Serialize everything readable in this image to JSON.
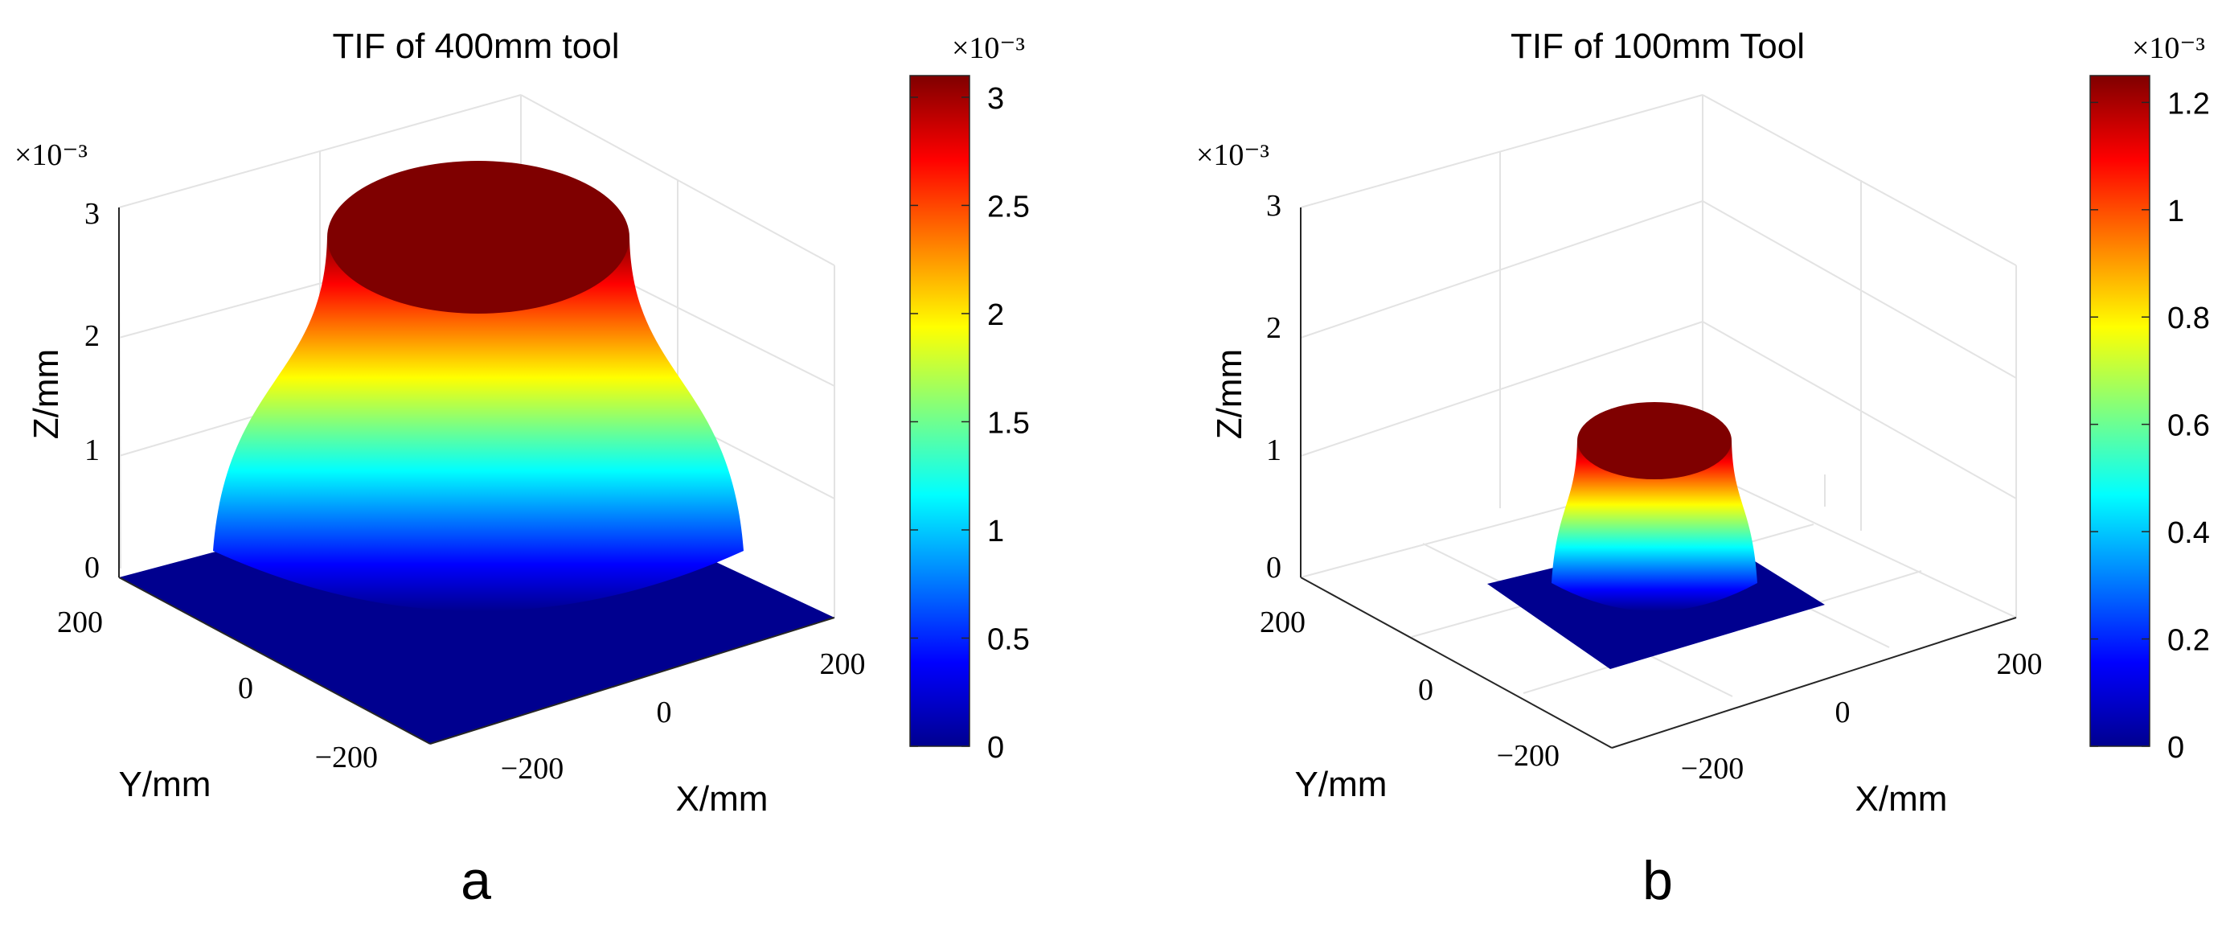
{
  "colors": {
    "jet": [
      "#00008f",
      "#0000ff",
      "#007fff",
      "#00ffff",
      "#7fff7f",
      "#ffff00",
      "#ff7f00",
      "#ff0000",
      "#7f0000"
    ],
    "grid": "#e3e3e3",
    "axis": "#262626"
  },
  "chart_data": [
    {
      "type": "surface3d",
      "panel_label": "a",
      "title": "TIF of 400mm tool",
      "xlabel": "X/mm",
      "ylabel": "Y/mm",
      "zlabel": "Z/mm",
      "x_ticks": [
        "−200",
        "0",
        "200"
      ],
      "y_ticks": [
        "−200",
        "0",
        "200"
      ],
      "z_ticks": [
        "0",
        "1",
        "2",
        "3"
      ],
      "z_exponent": "×10⁻³",
      "tool_diameter_mm": 400,
      "z_peak": 0.0031,
      "colorbar": {
        "min": 0,
        "max": 0.0031,
        "ticks": [
          "0",
          "0.5",
          "1",
          "1.5",
          "2",
          "2.5",
          "3"
        ],
        "exponent": "×10⁻³"
      }
    },
    {
      "type": "surface3d",
      "panel_label": "b",
      "title": "TIF of 100mm Tool",
      "xlabel": "X/mm",
      "ylabel": "Y/mm",
      "zlabel": "Z/mm",
      "x_ticks": [
        "−200",
        "0",
        "200"
      ],
      "y_ticks": [
        "−200",
        "0",
        "200"
      ],
      "z_ticks": [
        "0",
        "1",
        "2",
        "3"
      ],
      "z_exponent": "×10⁻³",
      "tool_diameter_mm": 100,
      "z_peak": 0.00125,
      "colorbar": {
        "min": 0,
        "max": 0.00125,
        "ticks": [
          "0",
          "0.2",
          "0.4",
          "0.6",
          "0.8",
          "1",
          "1.2"
        ],
        "exponent": "×10⁻³"
      }
    }
  ]
}
